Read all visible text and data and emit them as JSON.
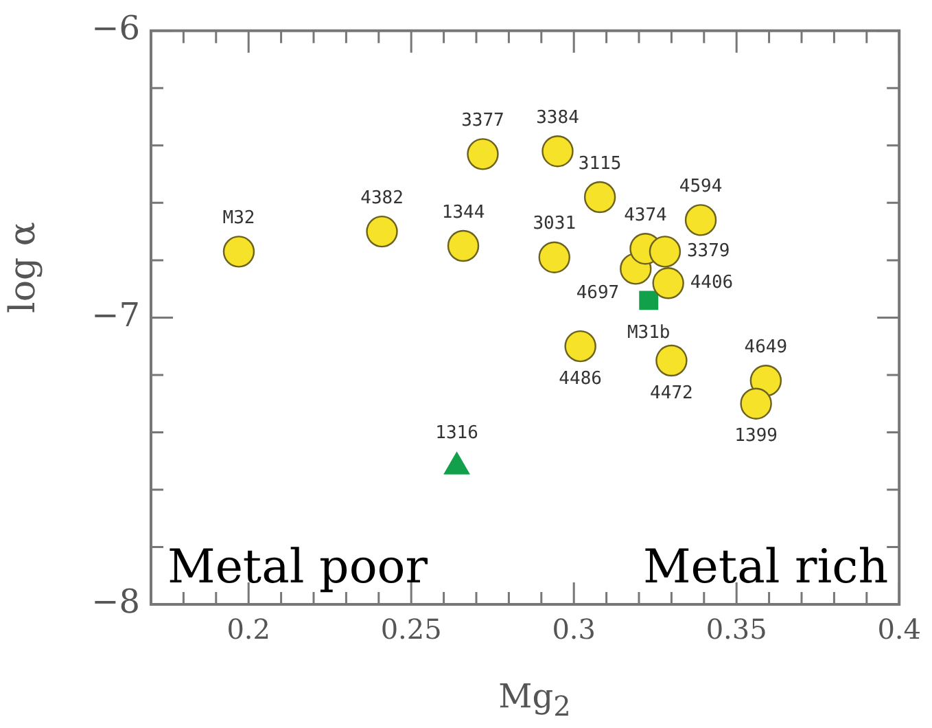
{
  "chart_data": {
    "type": "scatter",
    "xlabel": "Mg$_{2}$",
    "ylabel": "log α",
    "xlim": [
      0.17,
      0.4
    ],
    "ylim": [
      -8,
      -6
    ],
    "xticks": [
      {
        "value": 0.17,
        "label": null
      },
      {
        "value": 0.18,
        "label": null
      },
      {
        "value": 0.19,
        "label": null
      },
      0.2,
      {
        "value": 0.21,
        "label": null
      },
      {
        "value": 0.22,
        "label": null
      },
      {
        "value": 0.23,
        "label": null
      },
      {
        "value": 0.24,
        "label": null
      },
      0.25,
      {
        "value": 0.26,
        "label": null
      },
      {
        "value": 0.27,
        "label": null
      },
      {
        "value": 0.28,
        "label": null
      },
      {
        "value": 0.29,
        "label": null
      },
      0.3,
      {
        "value": 0.31,
        "label": null
      },
      {
        "value": 0.32,
        "label": null
      },
      {
        "value": 0.33,
        "label": null
      },
      {
        "value": 0.34,
        "label": null
      },
      0.35,
      {
        "value": 0.36,
        "label": null
      },
      {
        "value": 0.37,
        "label": null
      },
      {
        "value": 0.38,
        "label": null
      },
      {
        "value": 0.39,
        "label": null
      },
      0.4
    ],
    "yticks": [
      {
        "value": -8,
        "label": "−8"
      },
      {
        "value": -7.8,
        "label": null
      },
      {
        "value": -7.6,
        "label": null
      },
      {
        "value": -7.4,
        "label": null
      },
      {
        "value": -7.2,
        "label": null
      },
      {
        "value": -7,
        "label": "−7"
      },
      {
        "value": -6.8,
        "label": null
      },
      {
        "value": -6.6,
        "label": null
      },
      {
        "value": -6.4,
        "label": null
      },
      {
        "value": -6.2,
        "label": null
      },
      {
        "value": -6,
        "label": "−6"
      }
    ],
    "grid": false,
    "legend": false,
    "series": [
      {
        "color": "#f7e22a",
        "marker": "circle",
        "x": [
          0.197,
          0.241,
          0.266,
          0.272,
          0.295,
          0.308,
          0.339,
          0.294,
          0.319,
          0.322,
          0.328,
          0.329,
          0.302,
          0.33,
          0.359,
          0.356
        ],
        "values": [
          -6.77,
          -6.7,
          -6.75,
          -6.43,
          -6.42,
          -6.58,
          -6.66,
          -6.79,
          -6.83,
          -6.76,
          -6.77,
          -6.88,
          -7.1,
          -7.15,
          -7.22,
          -7.3
        ]
      },
      {
        "color": "#12a04a",
        "marker": "square",
        "x": [
          0.323
        ],
        "values": [
          -6.94
        ]
      },
      {
        "color": "#12a04a",
        "marker": "triangle",
        "x": [
          0.264
        ],
        "values": [
          -7.52
        ]
      }
    ],
    "annotations": [
      {
        "text": "M32",
        "x": 0.197,
        "y": -6.77
      },
      {
        "text": "4382",
        "x": 0.241,
        "y": -6.7
      },
      {
        "text": "1344",
        "x": 0.266,
        "y": -6.75
      },
      {
        "text": "3377",
        "x": 0.272,
        "y": -6.43
      },
      {
        "text": "3384",
        "x": 0.295,
        "y": -6.42
      },
      {
        "text": "3115",
        "x": 0.308,
        "y": -6.58
      },
      {
        "text": "4594",
        "x": 0.339,
        "y": -6.66
      },
      {
        "text": "3031",
        "x": 0.294,
        "y": -6.79
      },
      {
        "text": "4697",
        "x": 0.319,
        "y": -6.83
      },
      {
        "text": "4374",
        "x": 0.322,
        "y": -6.76
      },
      {
        "text": "3379",
        "x": 0.328,
        "y": -6.77
      },
      {
        "text": "4406",
        "x": 0.329,
        "y": -6.88
      },
      {
        "text": "4486",
        "x": 0.302,
        "y": -7.1
      },
      {
        "text": "4472",
        "x": 0.33,
        "y": -7.15
      },
      {
        "text": "4649",
        "x": 0.359,
        "y": -7.22
      },
      {
        "text": "1399",
        "x": 0.356,
        "y": -7.3
      },
      {
        "text": "M31b",
        "x": 0.323,
        "y": -6.94
      },
      {
        "text": "1316",
        "x": 0.264,
        "y": -7.52
      },
      "Metal poor",
      "Metal rich"
    ]
  }
}
